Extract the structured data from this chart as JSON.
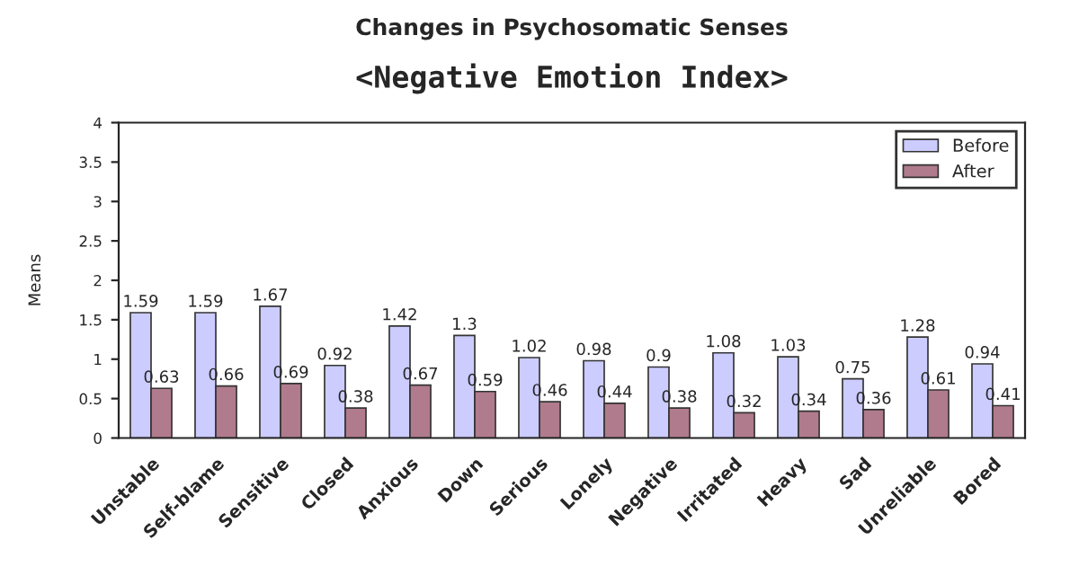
{
  "chart_data": {
    "type": "bar",
    "title": "Changes in Psychosomatic Senses",
    "subtitle": "<Negative Emotion Index>",
    "ylabel": "Means",
    "categories": [
      "Unstable",
      "Self-blame",
      "Sensitive",
      "Closed",
      "Anxious",
      "Down",
      "Serious",
      "Lonely",
      "Negative",
      "Irritated",
      "Heavy",
      "Sad",
      "Unreliable",
      "Bored"
    ],
    "series": [
      {
        "name": "Before",
        "color": "#ccccff",
        "values": [
          1.59,
          1.59,
          1.67,
          0.92,
          1.42,
          1.3,
          1.02,
          0.98,
          0.9,
          1.08,
          1.03,
          0.75,
          1.28,
          0.94
        ]
      },
      {
        "name": "After",
        "color": "#b07b8c",
        "values": [
          0.63,
          0.66,
          0.69,
          0.38,
          0.67,
          0.59,
          0.46,
          0.44,
          0.38,
          0.32,
          0.34,
          0.36,
          0.61,
          0.41
        ]
      }
    ],
    "ylim": [
      0,
      4
    ],
    "yticks": [
      0,
      0.5,
      1,
      1.5,
      2,
      2.5,
      3,
      3.5,
      4
    ],
    "grid": false,
    "legend": "top right",
    "data_labels": true
  }
}
